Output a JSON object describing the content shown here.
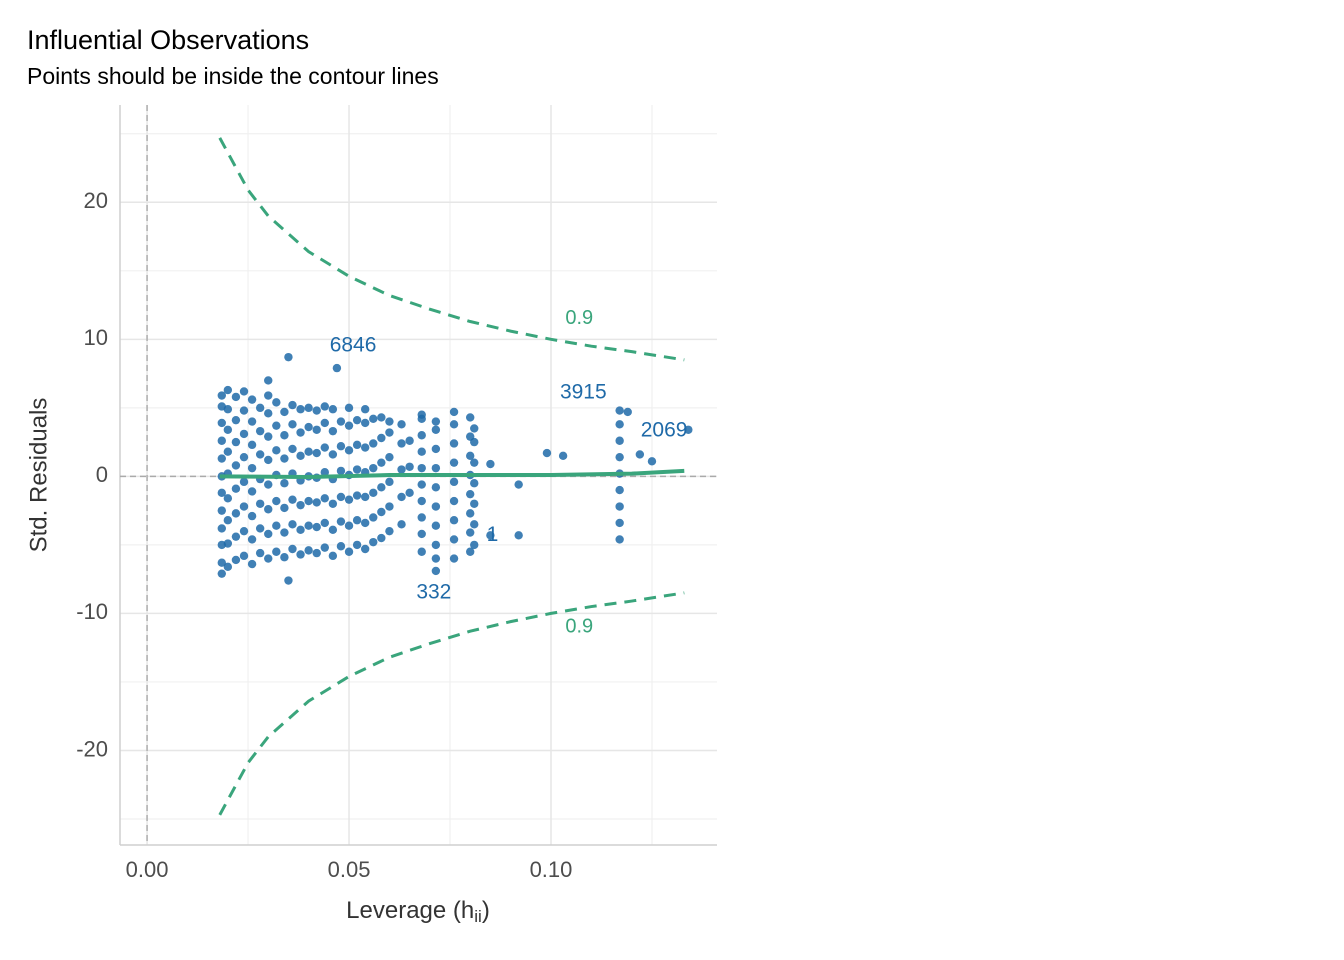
{
  "chart_data": {
    "type": "scatter",
    "title": "Influential Observations",
    "subtitle": "Points should be inside the contour lines",
    "x_label": "Leverage (h",
    "x_label_sub": "ii",
    "x_label_end": ")",
    "y_label": "Std. Residuals",
    "xlim": [
      -0.0067,
      0.1411
    ],
    "ylim": [
      -26.9,
      27.1
    ],
    "xticks": [
      {
        "value": 0,
        "label": "0.00"
      },
      {
        "value": 0.05,
        "label": "0.05"
      },
      {
        "value": 0.1,
        "label": "0.10"
      }
    ],
    "xminorticks": [
      0.025,
      0.075,
      0.125
    ],
    "yticks": [
      -20,
      -10,
      0,
      10,
      20
    ],
    "yminorticks": [
      -25,
      -15,
      -5,
      5,
      15,
      25
    ],
    "grid": true,
    "ref_lines": {
      "x": 0,
      "y": 0
    },
    "color": "#1f6aa8",
    "x": [
      0.0185,
      0.0185,
      0.0185,
      0.0185,
      0.0185,
      0.0185,
      0.0185,
      0.0185,
      0.0185,
      0.0185,
      0.0185,
      0.0185,
      0.02,
      0.02,
      0.02,
      0.02,
      0.02,
      0.02,
      0.02,
      0.02,
      0.02,
      0.022,
      0.022,
      0.022,
      0.022,
      0.022,
      0.022,
      0.022,
      0.022,
      0.024,
      0.024,
      0.024,
      0.024,
      0.024,
      0.024,
      0.024,
      0.024,
      0.026,
      0.026,
      0.026,
      0.026,
      0.026,
      0.026,
      0.026,
      0.026,
      0.028,
      0.028,
      0.028,
      0.028,
      0.028,
      0.028,
      0.028,
      0.03,
      0.03,
      0.03,
      0.03,
      0.03,
      0.03,
      0.03,
      0.03,
      0.032,
      0.032,
      0.032,
      0.032,
      0.032,
      0.032,
      0.032,
      0.034,
      0.034,
      0.034,
      0.034,
      0.034,
      0.034,
      0.034,
      0.036,
      0.036,
      0.036,
      0.036,
      0.036,
      0.036,
      0.036,
      0.038,
      0.038,
      0.038,
      0.038,
      0.038,
      0.038,
      0.038,
      0.04,
      0.04,
      0.04,
      0.04,
      0.04,
      0.04,
      0.04,
      0.042,
      0.042,
      0.042,
      0.042,
      0.042,
      0.042,
      0.042,
      0.044,
      0.044,
      0.044,
      0.044,
      0.044,
      0.044,
      0.044,
      0.046,
      0.046,
      0.046,
      0.046,
      0.046,
      0.046,
      0.046,
      0.048,
      0.048,
      0.048,
      0.048,
      0.048,
      0.048,
      0.05,
      0.05,
      0.05,
      0.05,
      0.05,
      0.05,
      0.05,
      0.052,
      0.052,
      0.052,
      0.052,
      0.052,
      0.052,
      0.054,
      0.054,
      0.054,
      0.054,
      0.054,
      0.054,
      0.054,
      0.056,
      0.056,
      0.056,
      0.056,
      0.056,
      0.056,
      0.058,
      0.058,
      0.058,
      0.058,
      0.058,
      0.058,
      0.06,
      0.06,
      0.06,
      0.06,
      0.06,
      0.06,
      0.063,
      0.063,
      0.063,
      0.063,
      0.063,
      0.065,
      0.065,
      0.065,
      0.068,
      0.068,
      0.068,
      0.068,
      0.068,
      0.068,
      0.068,
      0.068,
      0.068,
      0.068,
      0.0715,
      0.0715,
      0.0715,
      0.0715,
      0.0715,
      0.0715,
      0.0715,
      0.0715,
      0.0715,
      0.076,
      0.076,
      0.076,
      0.076,
      0.076,
      0.076,
      0.076,
      0.076,
      0.076,
      0.08,
      0.08,
      0.08,
      0.08,
      0.08,
      0.08,
      0.08,
      0.08,
      0.081,
      0.081,
      0.081,
      0.081,
      0.081,
      0.081,
      0.081,
      0.035,
      0.047,
      0.035,
      0.03,
      0.085,
      0.085,
      0.092,
      0.092,
      0.099,
      0.103,
      0.0715,
      0.117,
      0.117,
      0.117,
      0.117,
      0.117,
      0.117,
      0.117,
      0.117,
      0.117,
      0.119,
      0.122,
      0.125,
      0.134
    ],
    "y": [
      -7.1,
      -6.3,
      -5,
      -3.8,
      -2.5,
      -1.2,
      0,
      1.3,
      2.6,
      3.9,
      5.1,
      5.9,
      -6.6,
      -4.9,
      -3.2,
      -1.6,
      0.2,
      1.8,
      3.4,
      4.9,
      6.3,
      -6.1,
      -4.4,
      -2.7,
      -0.9,
      0.8,
      2.5,
      4.1,
      5.8,
      -5.8,
      -4,
      -2.2,
      -0.4,
      1.4,
      3.1,
      4.8,
      6.2,
      -6.4,
      -4.6,
      -2.9,
      -1.1,
      0.6,
      2.3,
      4,
      5.6,
      -5.6,
      -3.8,
      -2,
      -0.2,
      1.6,
      3.3,
      5,
      -6,
      -4.2,
      -2.4,
      -0.6,
      1.2,
      2.9,
      4.6,
      5.9,
      -5.5,
      -3.6,
      -1.8,
      0.1,
      1.9,
      3.7,
      5.4,
      -5.9,
      -4.1,
      -2.3,
      -0.5,
      1.3,
      3,
      4.7,
      -5.3,
      -3.5,
      -1.7,
      0.2,
      2,
      3.8,
      5.2,
      -5.7,
      -3.9,
      -2.1,
      -0.3,
      1.5,
      3.2,
      4.9,
      -5.4,
      -3.6,
      -1.8,
      0,
      1.8,
      3.6,
      5,
      -5.6,
      -3.7,
      -1.9,
      -0.1,
      1.7,
      3.4,
      4.8,
      -5.2,
      -3.4,
      -1.6,
      0.3,
      2.1,
      3.9,
      5.1,
      -5.8,
      -3.9,
      -2,
      -0.2,
      1.6,
      3.3,
      4.9,
      -5.1,
      -3.3,
      -1.5,
      0.4,
      2.2,
      4,
      -5.5,
      -3.6,
      -1.7,
      0.1,
      1.9,
      3.7,
      5,
      -5,
      -3.2,
      -1.4,
      0.5,
      2.3,
      4.1,
      -5.3,
      -3.4,
      -1.5,
      0.3,
      2.1,
      3.9,
      4.9,
      -4.8,
      -3,
      -1.2,
      0.6,
      2.4,
      4.2,
      -4.5,
      -2.6,
      -0.8,
      1,
      2.8,
      4.3,
      -4,
      -2.2,
      -0.4,
      1.4,
      3.2,
      4,
      -3.5,
      -1.5,
      0.5,
      2.4,
      3.8,
      -1.2,
      0.7,
      2.6,
      -5.5,
      -4.2,
      -3,
      -1.8,
      -0.6,
      0.6,
      1.8,
      3,
      4.2,
      4.5,
      -5,
      -3.6,
      -2.2,
      -0.8,
      0.6,
      2,
      3.4,
      4,
      -6,
      -6,
      -4.6,
      -3.2,
      -1.8,
      -0.4,
      1,
      2.4,
      3.8,
      4.7,
      -5.5,
      -4.1,
      -2.7,
      -1.3,
      0.1,
      1.5,
      2.9,
      4.3,
      -5,
      -3.5,
      -2,
      -0.5,
      1,
      2.5,
      3.5,
      8.7,
      7.9,
      -7.6,
      7,
      0.9,
      -4.3,
      -0.6,
      -4.3,
      1.7,
      1.5,
      -6.9,
      -4.6,
      -3.4,
      -2.2,
      -1,
      0.2,
      1.4,
      2.6,
      3.8,
      4.8,
      4.7,
      1.6,
      1.1,
      3.4
    ],
    "contours": [
      {
        "label": "0.9",
        "label_x": 0.107,
        "label_y": 11.5,
        "color": "#3aa57c",
        "x": [
          0.018,
          0.025,
          0.03,
          0.04,
          0.05,
          0.06,
          0.07,
          0.08,
          0.09,
          0.1,
          0.11,
          0.12,
          0.133
        ],
        "y": [
          24.7,
          20.9,
          19,
          16.4,
          14.6,
          13.2,
          12.2,
          11.3,
          10.6,
          10,
          9.5,
          9.1,
          8.5
        ]
      },
      {
        "label": "0.9",
        "label_x": 0.107,
        "label_y": -11.0,
        "color": "#3aa57c",
        "x": [
          0.018,
          0.025,
          0.03,
          0.04,
          0.05,
          0.06,
          0.07,
          0.08,
          0.09,
          0.1,
          0.11,
          0.12,
          0.133
        ],
        "y": [
          -24.7,
          -20.9,
          -19,
          -16.4,
          -14.6,
          -13.2,
          -12.2,
          -11.3,
          -10.6,
          -10,
          -9.5,
          -9.1,
          -8.5
        ]
      }
    ],
    "smooth": {
      "color": "#3aa57c",
      "x": [
        0.018,
        0.04,
        0.06,
        0.08,
        0.1,
        0.12,
        0.133
      ],
      "y": [
        0,
        -0.05,
        0.1,
        0.1,
        0.1,
        0.2,
        0.4
      ]
    },
    "annotations": [
      {
        "text": "6846",
        "x": 0.051,
        "y": 9.5
      },
      {
        "text": "3915",
        "x": 0.108,
        "y": 6.1
      },
      {
        "text": "2069",
        "x": 0.128,
        "y": 3.3
      },
      {
        "text": "332",
        "x": 0.071,
        "y": -8.5
      },
      {
        "text": "1",
        "x": 0.0855,
        "y": -4.3
      }
    ]
  }
}
